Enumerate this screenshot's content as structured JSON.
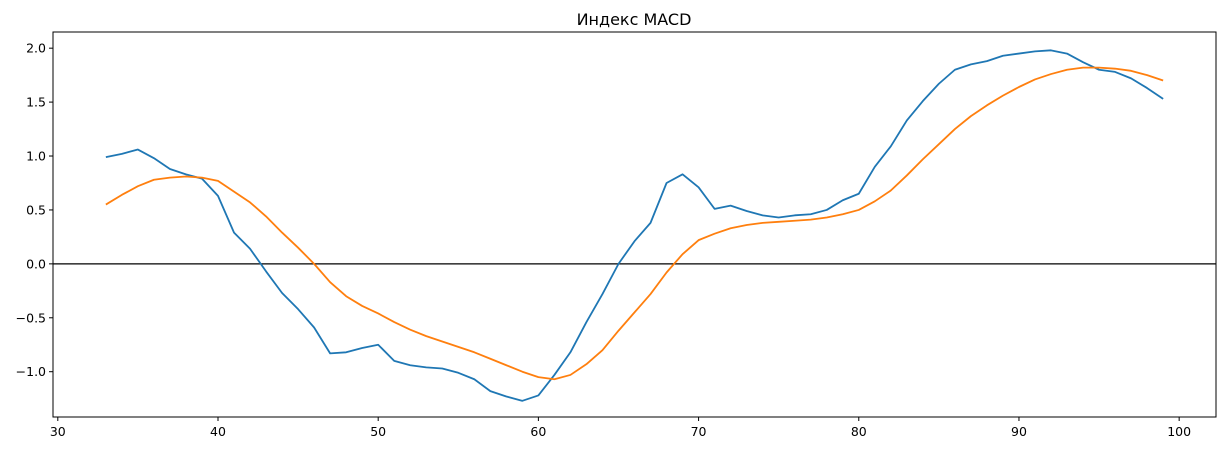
{
  "chart_data": {
    "type": "line",
    "title": "Индекс MACD",
    "xlabel": "",
    "ylabel": "",
    "xlim": [
      29.7,
      102.3
    ],
    "ylim": [
      -1.42,
      2.15
    ],
    "xticks": [
      30,
      40,
      50,
      60,
      70,
      80,
      90,
      100
    ],
    "xtick_labels": [
      "30",
      "40",
      "50",
      "60",
      "70",
      "80",
      "90",
      "100"
    ],
    "yticks": [
      -1.0,
      -0.5,
      0.0,
      0.5,
      1.0,
      1.5,
      2.0
    ],
    "ytick_labels": [
      "−1.0",
      "−0.5",
      "0.0",
      "0.5",
      "1.0",
      "1.5",
      "2.0"
    ],
    "grid": false,
    "hline": 0.0,
    "hline_color": "#000000",
    "x": [
      33,
      34,
      35,
      36,
      37,
      38,
      39,
      40,
      41,
      42,
      43,
      44,
      45,
      46,
      47,
      48,
      49,
      50,
      51,
      52,
      53,
      54,
      55,
      56,
      57,
      58,
      59,
      60,
      61,
      62,
      63,
      64,
      65,
      66,
      67,
      68,
      69,
      70,
      71,
      72,
      73,
      74,
      75,
      76,
      77,
      78,
      79,
      80,
      81,
      82,
      83,
      84,
      85,
      86,
      87,
      88,
      89,
      90,
      91,
      92,
      93,
      94,
      95,
      96,
      97,
      98,
      99
    ],
    "series": [
      {
        "color": "#1f77b4",
        "values": [
          0.99,
          1.02,
          1.06,
          0.98,
          0.88,
          0.83,
          0.79,
          0.63,
          0.29,
          0.14,
          -0.07,
          -0.27,
          -0.42,
          -0.59,
          -0.83,
          -0.82,
          -0.78,
          -0.75,
          -0.9,
          -0.94,
          -0.96,
          -0.97,
          -1.01,
          -1.07,
          -1.18,
          -1.23,
          -1.27,
          -1.22,
          -1.03,
          -0.82,
          -0.54,
          -0.28,
          0.0,
          0.21,
          0.38,
          0.75,
          0.83,
          0.71,
          0.51,
          0.54,
          0.49,
          0.45,
          0.43,
          0.45,
          0.46,
          0.5,
          0.59,
          0.65,
          0.9,
          1.09,
          1.33,
          1.51,
          1.67,
          1.8,
          1.85,
          1.88,
          1.93,
          1.95,
          1.97,
          1.98,
          1.95,
          1.87,
          1.8,
          1.78,
          1.72,
          1.63,
          1.53
        ]
      },
      {
        "color": "#ff7f0e",
        "values": [
          0.55,
          0.64,
          0.72,
          0.78,
          0.8,
          0.81,
          0.8,
          0.77,
          0.67,
          0.57,
          0.44,
          0.29,
          0.15,
          0.0,
          -0.17,
          -0.3,
          -0.39,
          -0.46,
          -0.54,
          -0.61,
          -0.67,
          -0.72,
          -0.77,
          -0.82,
          -0.88,
          -0.94,
          -1.0,
          -1.05,
          -1.07,
          -1.03,
          -0.93,
          -0.8,
          -0.62,
          -0.45,
          -0.28,
          -0.08,
          0.09,
          0.22,
          0.28,
          0.33,
          0.36,
          0.38,
          0.39,
          0.4,
          0.41,
          0.43,
          0.46,
          0.5,
          0.58,
          0.68,
          0.82,
          0.97,
          1.11,
          1.25,
          1.37,
          1.47,
          1.56,
          1.64,
          1.71,
          1.76,
          1.8,
          1.82,
          1.82,
          1.81,
          1.79,
          1.75,
          1.7
        ]
      }
    ]
  }
}
